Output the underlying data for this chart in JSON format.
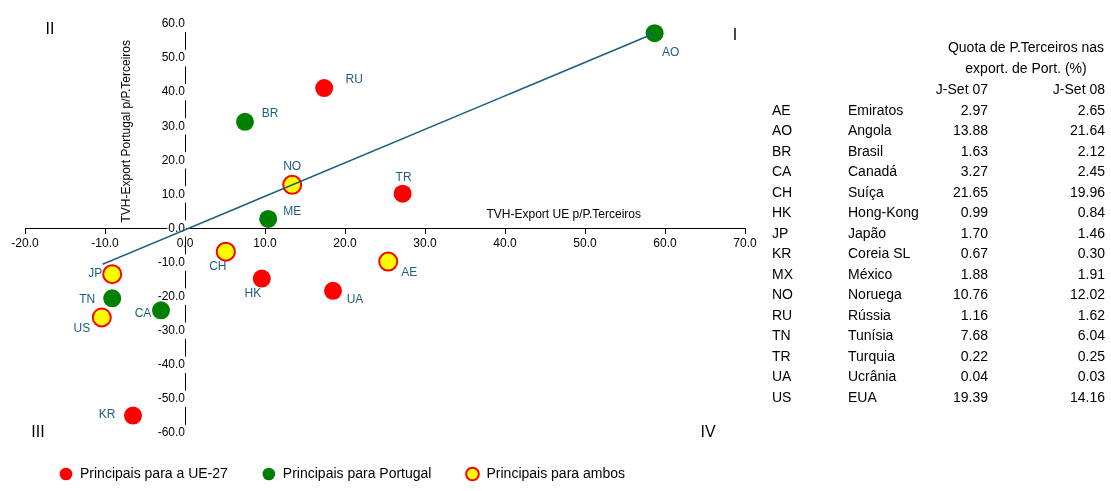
{
  "chart_data": [
    {
      "type": "scatter",
      "xlabel": "TVH-Export UE p/P.Terceiros",
      "ylabel": "TVH-Export Portugal p/P.Terceiros",
      "xlim": [
        -20,
        70
      ],
      "ylim": [
        -60,
        60
      ],
      "xticks": [
        {
          "value": -20,
          "label": "-20.0"
        },
        {
          "value": -10,
          "label": "-10.0"
        },
        {
          "value": 0,
          "label": "0.0"
        },
        {
          "value": 10,
          "label": "10.0"
        },
        {
          "value": 20,
          "label": "20.0"
        },
        {
          "value": 30,
          "label": "30.0"
        },
        {
          "value": 40,
          "label": "40.0"
        },
        {
          "value": 50,
          "label": "50.0"
        },
        {
          "value": 60,
          "label": "60.0"
        },
        {
          "value": 70,
          "label": "70.0"
        }
      ],
      "yticks": [
        {
          "value": -60,
          "label": "-60.0"
        },
        {
          "value": -50,
          "label": "-50.0"
        },
        {
          "value": -40,
          "label": "-40.0"
        },
        {
          "value": -30,
          "label": "-30.0"
        },
        {
          "value": -20,
          "label": "-20.0"
        },
        {
          "value": -10,
          "label": "-10.0"
        },
        {
          "value": 0,
          "label": "0.0"
        },
        {
          "value": 10,
          "label": "10.0"
        },
        {
          "value": 20,
          "label": "20.0"
        },
        {
          "value": 30,
          "label": "30.0"
        },
        {
          "value": 40,
          "label": "40.0"
        },
        {
          "value": 50,
          "label": "50.0"
        },
        {
          "value": 60,
          "label": "60.0"
        }
      ],
      "grid": false,
      "legend": "bottom",
      "series": [
        {
          "name": "Principais para a UE-27",
          "color": "#ff0000",
          "x": [
            17.4,
            27.2,
            9.6,
            18.5,
            -6.5
          ],
          "values": [
            41.2,
            10.2,
            -14.7,
            -18.3,
            -54.9
          ]
        },
        {
          "name": "Principais para Portugal",
          "color": "#008000",
          "x": [
            58.7,
            7.5,
            10.4,
            -9.1,
            -3.0
          ],
          "values": [
            57.3,
            31.3,
            2.8,
            -20.5,
            -24.0
          ]
        },
        {
          "name": "Principais para ambos",
          "color": "#ffff00",
          "x": [
            13.4,
            -9.1,
            -10.4,
            5.1,
            25.4
          ],
          "values": [
            12.8,
            -13.4,
            -26.1,
            -6.8,
            -9.7
          ]
        },
        {
          "type": "line",
          "color": "#1a5f7f",
          "x": [
            -10.3,
            58.7
          ],
          "values": [
            -10.5,
            57.3
          ]
        }
      ],
      "annotations": [
        "I",
        "II",
        "III",
        "IV",
        {
          "text": "RU",
          "x": 17.4,
          "y": 41.2
        },
        {
          "text": "BR",
          "x": 7.5,
          "y": 31.3
        },
        {
          "text": "NO",
          "x": 13.4,
          "y": 12.8
        },
        {
          "text": "ME",
          "x": 10.4,
          "y": 2.8
        },
        {
          "text": "TR",
          "x": 27.2,
          "y": 10.2
        },
        {
          "text": "AO",
          "x": 58.7,
          "y": 57.3
        },
        {
          "text": "JP",
          "x": -9.1,
          "y": -13.4
        },
        {
          "text": "TN",
          "x": -9.1,
          "y": -20.5
        },
        {
          "text": "US",
          "x": -10.4,
          "y": -26.1
        },
        {
          "text": "CA",
          "x": -3.0,
          "y": -24.0
        },
        {
          "text": "CH",
          "x": 5.1,
          "y": -6.8
        },
        {
          "text": "HK",
          "x": 9.6,
          "y": -14.7
        },
        {
          "text": "UA",
          "x": 18.5,
          "y": -18.3
        },
        {
          "text": "AE",
          "x": 25.4,
          "y": -9.7
        },
        {
          "text": "KR",
          "x": -6.5,
          "y": -54.9
        }
      ]
    },
    {
      "type": "heatmap",
      "title": "Quota de P.Terceiros nas export. de Port. (%)",
      "data_labels": true,
      "categories": [
        "J-Set 07",
        "J-Set 08"
      ],
      "y_categories": [
        "AE",
        "AO",
        "BR",
        "CA",
        "CH",
        "HK",
        "JP",
        "KR",
        "MX",
        "NO",
        "RU",
        "TN",
        "TR",
        "UA",
        "US"
      ],
      "y2_categories": [
        "Emiratos",
        "Angola",
        "Brasil",
        "Canadá",
        "Suíça",
        "Hong-Kong",
        "Japão",
        "Coreia SL",
        "México",
        "Noruega",
        "Rússia",
        "Tunísia",
        "Turquia",
        "Ucrânia",
        "EUA"
      ],
      "cells": [
        [
          2.97,
          2.65
        ],
        [
          13.88,
          21.64
        ],
        [
          1.63,
          2.12
        ],
        [
          3.27,
          2.45
        ],
        [
          21.65,
          19.96
        ],
        [
          0.99,
          0.84
        ],
        [
          1.7,
          1.46
        ],
        [
          0.67,
          0.3
        ],
        [
          1.88,
          1.91
        ],
        [
          10.76,
          12.02
        ],
        [
          1.16,
          1.62
        ],
        [
          7.68,
          6.04
        ],
        [
          0.22,
          0.25
        ],
        [
          0.04,
          0.03
        ],
        [
          19.39,
          14.16
        ]
      ],
      "cell_labels": [
        [
          "2.97",
          "2.65"
        ],
        [
          "13.88",
          "21.64"
        ],
        [
          "1.63",
          "2.12"
        ],
        [
          "3.27",
          "2.45"
        ],
        [
          "21.65",
          "19.96"
        ],
        [
          "0.99",
          "0.84"
        ],
        [
          "1.70",
          "1.46"
        ],
        [
          "0.67",
          "0.30"
        ],
        [
          "1.88",
          "1.91"
        ],
        [
          "10.76",
          "12.02"
        ],
        [
          "1.16",
          "1.62"
        ],
        [
          "7.68",
          "6.04"
        ],
        [
          "0.22",
          "0.25"
        ],
        [
          "0.04",
          "0.03"
        ],
        [
          "19.39",
          "14.16"
        ]
      ]
    }
  ]
}
